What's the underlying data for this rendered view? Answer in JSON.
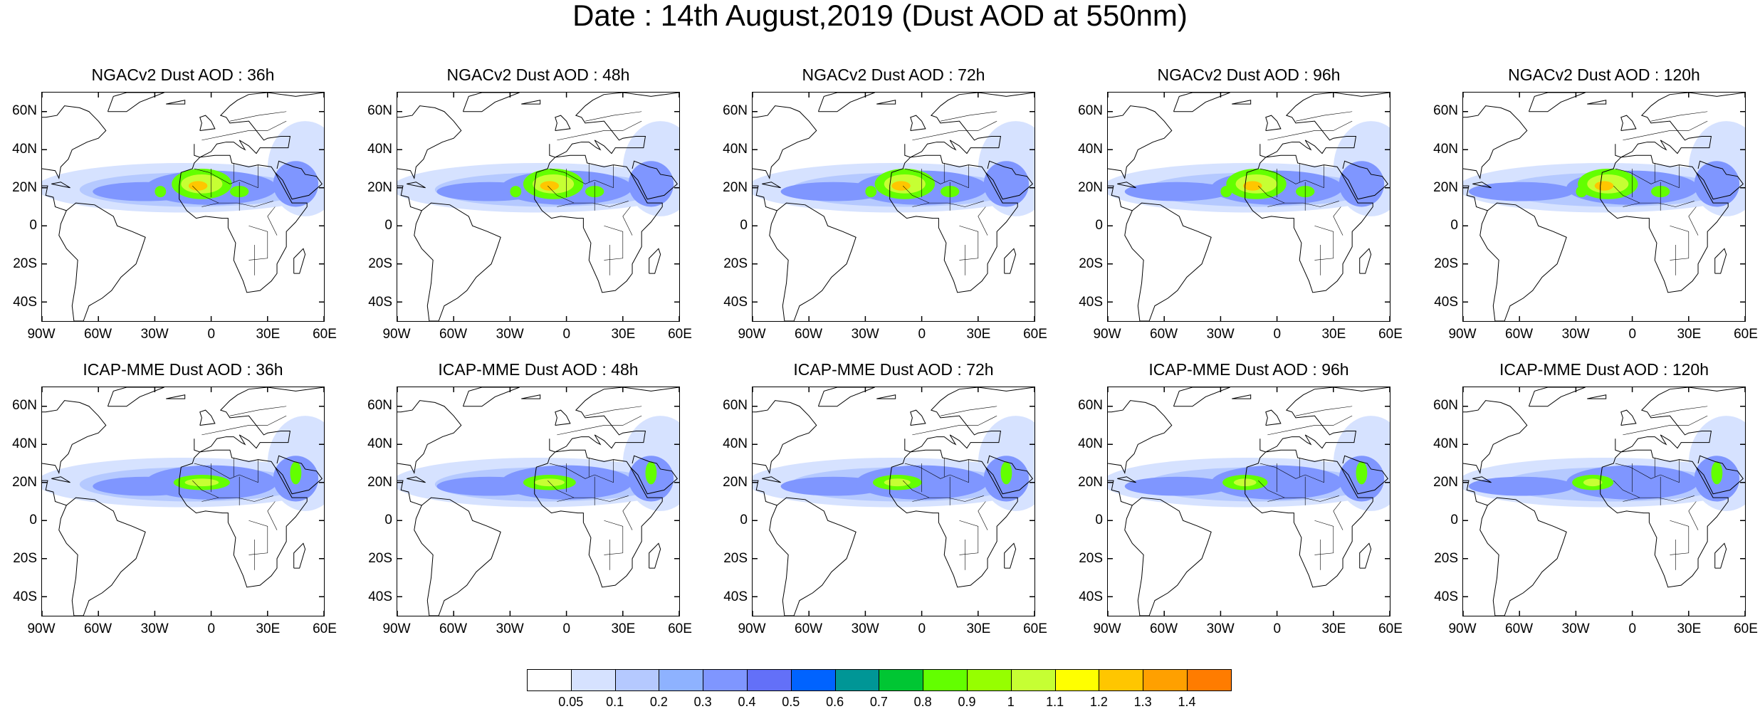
{
  "title": "Date : 14th August,2019 (Dust AOD at 550nm)",
  "lat_labels": [
    "60N",
    "40N",
    "20N",
    "0",
    "20S",
    "40S"
  ],
  "lon_labels": [
    "90W",
    "60W",
    "30W",
    "0",
    "30E",
    "60E"
  ],
  "panels": [
    {
      "title": "NGACv2 Dust AOD : 36h"
    },
    {
      "title": "NGACv2 Dust AOD : 48h"
    },
    {
      "title": "NGACv2 Dust AOD : 72h"
    },
    {
      "title": "NGACv2 Dust AOD : 96h"
    },
    {
      "title": "NGACv2 Dust AOD : 120h"
    },
    {
      "title": "ICAP-MME Dust AOD : 36h"
    },
    {
      "title": "ICAP-MME Dust AOD : 48h"
    },
    {
      "title": "ICAP-MME Dust AOD : 72h"
    },
    {
      "title": "ICAP-MME Dust AOD : 96h"
    },
    {
      "title": "ICAP-MME Dust AOD : 120h"
    }
  ],
  "colorbar": {
    "labels": [
      "0.05",
      "0.1",
      "0.2",
      "0.3",
      "0.4",
      "0.5",
      "0.6",
      "0.7",
      "0.8",
      "0.9",
      "1",
      "1.1",
      "1.2",
      "1.3",
      "1.4"
    ],
    "colors": [
      "#ffffff",
      "#d6e2ff",
      "#b5c9ff",
      "#8eb2ff",
      "#7f96ff",
      "#6370f8",
      "#0063ff",
      "#009696",
      "#00c633",
      "#63ff00",
      "#96ff00",
      "#c6ff33",
      "#ffff00",
      "#ffc600",
      "#ffa000",
      "#ff7c00",
      "#ff1900"
    ]
  }
}
